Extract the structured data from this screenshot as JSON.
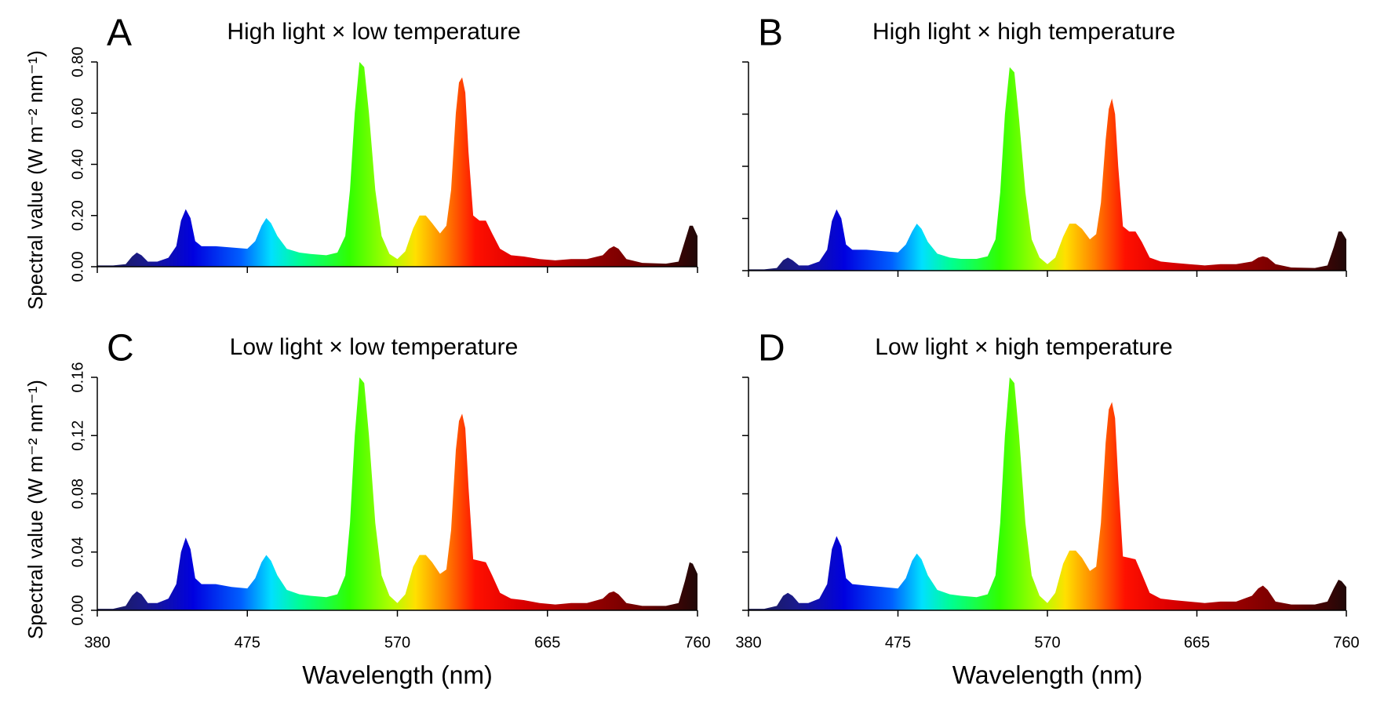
{
  "chart_data": [
    {
      "type": "area",
      "panel": "A",
      "title": "High light × low temperature",
      "ylabel": "Spectral value (W m⁻² nm⁻¹)",
      "ylim": [
        0,
        0.8
      ],
      "yticks": [
        {
          "value": 0,
          "label": "0.00"
        },
        {
          "value": 0.2,
          "label": "0.20"
        },
        {
          "value": 0.4,
          "label": "0.40"
        },
        {
          "value": 0.6,
          "label": "0.60"
        },
        {
          "value": 0.8,
          "label": "0.80"
        }
      ],
      "x": [
        380,
        390,
        398,
        402,
        405,
        408,
        412,
        418,
        425,
        430,
        433,
        436,
        439,
        442,
        446,
        455,
        465,
        475,
        480,
        484,
        487,
        490,
        494,
        500,
        508,
        515,
        525,
        532,
        537,
        540,
        543,
        546,
        549,
        552,
        556,
        560,
        565,
        570,
        575,
        580,
        584,
        588,
        592,
        597,
        601,
        604,
        607,
        609,
        611,
        613,
        615,
        618,
        622,
        626,
        630,
        635,
        642,
        650,
        660,
        670,
        680,
        690,
        700,
        704,
        707,
        710,
        715,
        725,
        740,
        748,
        752,
        755,
        757,
        760
      ],
      "values": [
        0.005,
        0.005,
        0.01,
        0.04,
        0.055,
        0.045,
        0.02,
        0.02,
        0.035,
        0.08,
        0.18,
        0.225,
        0.19,
        0.1,
        0.08,
        0.08,
        0.075,
        0.07,
        0.1,
        0.16,
        0.19,
        0.17,
        0.12,
        0.07,
        0.055,
        0.05,
        0.045,
        0.055,
        0.12,
        0.3,
        0.6,
        0.8,
        0.78,
        0.6,
        0.3,
        0.12,
        0.05,
        0.03,
        0.06,
        0.15,
        0.2,
        0.2,
        0.17,
        0.13,
        0.16,
        0.3,
        0.6,
        0.72,
        0.74,
        0.68,
        0.45,
        0.2,
        0.18,
        0.18,
        0.13,
        0.07,
        0.045,
        0.04,
        0.03,
        0.025,
        0.03,
        0.03,
        0.045,
        0.07,
        0.08,
        0.07,
        0.03,
        0.015,
        0.012,
        0.02,
        0.1,
        0.16,
        0.16,
        0.12
      ]
    },
    {
      "type": "area",
      "panel": "B",
      "title": "High light × high temperature",
      "x": [
        380,
        390,
        398,
        402,
        405,
        408,
        412,
        418,
        425,
        430,
        433,
        436,
        439,
        442,
        446,
        455,
        465,
        475,
        480,
        484,
        487,
        490,
        494,
        500,
        508,
        515,
        525,
        532,
        537,
        540,
        543,
        546,
        549,
        552,
        556,
        560,
        565,
        570,
        575,
        580,
        584,
        588,
        592,
        597,
        601,
        604,
        607,
        609,
        611,
        613,
        615,
        618,
        622,
        626,
        630,
        635,
        642,
        650,
        660,
        670,
        680,
        690,
        700,
        704,
        707,
        710,
        715,
        725,
        740,
        748,
        752,
        755,
        757,
        760
      ],
      "values": [
        0.005,
        0.005,
        0.01,
        0.04,
        0.05,
        0.04,
        0.02,
        0.02,
        0.035,
        0.08,
        0.19,
        0.235,
        0.2,
        0.1,
        0.08,
        0.08,
        0.075,
        0.07,
        0.1,
        0.15,
        0.18,
        0.16,
        0.11,
        0.065,
        0.05,
        0.045,
        0.045,
        0.055,
        0.12,
        0.3,
        0.6,
        0.78,
        0.76,
        0.58,
        0.3,
        0.12,
        0.05,
        0.025,
        0.05,
        0.13,
        0.18,
        0.18,
        0.16,
        0.12,
        0.14,
        0.26,
        0.5,
        0.62,
        0.66,
        0.6,
        0.4,
        0.17,
        0.15,
        0.15,
        0.11,
        0.05,
        0.035,
        0.03,
        0.025,
        0.02,
        0.025,
        0.025,
        0.035,
        0.05,
        0.055,
        0.05,
        0.025,
        0.012,
        0.01,
        0.02,
        0.09,
        0.15,
        0.15,
        0.12
      ]
    },
    {
      "type": "area",
      "panel": "C",
      "title": "Low light × low temperature",
      "ylabel": "Spectral value (W m⁻² nm⁻¹)",
      "xlabel": "Wavelength (nm)",
      "xlim": [
        380,
        760
      ],
      "xticks": [
        380,
        475,
        570,
        665,
        760
      ],
      "ylim": [
        0,
        0.16
      ],
      "yticks": [
        {
          "value": 0,
          "label": "0.00"
        },
        {
          "value": 0.04,
          "label": "0.04"
        },
        {
          "value": 0.08,
          "label": "0.08"
        },
        {
          "value": 0.12,
          "label": "0,12"
        },
        {
          "value": 0.16,
          "label": "0.16"
        }
      ],
      "x": [
        380,
        390,
        398,
        402,
        405,
        408,
        412,
        418,
        425,
        430,
        433,
        436,
        439,
        442,
        446,
        455,
        465,
        475,
        480,
        484,
        487,
        490,
        494,
        500,
        508,
        515,
        525,
        532,
        537,
        540,
        543,
        546,
        549,
        552,
        556,
        560,
        565,
        570,
        575,
        580,
        584,
        588,
        592,
        597,
        601,
        604,
        607,
        609,
        611,
        613,
        615,
        618,
        622,
        626,
        630,
        635,
        642,
        650,
        660,
        670,
        680,
        690,
        700,
        704,
        707,
        710,
        715,
        725,
        740,
        748,
        752,
        755,
        757,
        760
      ],
      "values": [
        0.001,
        0.001,
        0.003,
        0.01,
        0.013,
        0.011,
        0.005,
        0.005,
        0.008,
        0.018,
        0.04,
        0.05,
        0.042,
        0.022,
        0.018,
        0.018,
        0.016,
        0.015,
        0.022,
        0.033,
        0.038,
        0.034,
        0.024,
        0.014,
        0.011,
        0.01,
        0.009,
        0.011,
        0.024,
        0.06,
        0.12,
        0.16,
        0.156,
        0.12,
        0.06,
        0.024,
        0.01,
        0.005,
        0.011,
        0.03,
        0.038,
        0.038,
        0.033,
        0.025,
        0.028,
        0.055,
        0.11,
        0.13,
        0.135,
        0.125,
        0.085,
        0.035,
        0.034,
        0.033,
        0.024,
        0.012,
        0.008,
        0.007,
        0.005,
        0.004,
        0.005,
        0.005,
        0.008,
        0.012,
        0.013,
        0.011,
        0.005,
        0.003,
        0.003,
        0.005,
        0.02,
        0.033,
        0.032,
        0.025
      ]
    },
    {
      "type": "area",
      "panel": "D",
      "title": "Low light × high temperature",
      "xlabel": "Wavelength (nm)",
      "xlim": [
        380,
        760
      ],
      "xticks": [
        380,
        475,
        570,
        665,
        760
      ],
      "x": [
        380,
        390,
        398,
        402,
        405,
        408,
        412,
        418,
        425,
        430,
        433,
        436,
        439,
        442,
        446,
        455,
        465,
        475,
        480,
        484,
        487,
        490,
        494,
        500,
        508,
        515,
        525,
        532,
        537,
        540,
        543,
        546,
        549,
        552,
        556,
        560,
        565,
        570,
        575,
        580,
        584,
        588,
        592,
        597,
        601,
        604,
        607,
        609,
        611,
        613,
        615,
        618,
        622,
        626,
        630,
        635,
        642,
        650,
        660,
        670,
        680,
        690,
        700,
        704,
        707,
        710,
        715,
        725,
        740,
        748,
        752,
        755,
        757,
        760
      ],
      "values": [
        0.001,
        0.001,
        0.003,
        0.01,
        0.012,
        0.01,
        0.005,
        0.005,
        0.008,
        0.018,
        0.042,
        0.051,
        0.044,
        0.022,
        0.018,
        0.017,
        0.016,
        0.015,
        0.022,
        0.034,
        0.039,
        0.035,
        0.024,
        0.014,
        0.011,
        0.01,
        0.009,
        0.011,
        0.024,
        0.06,
        0.12,
        0.16,
        0.156,
        0.12,
        0.06,
        0.024,
        0.01,
        0.005,
        0.012,
        0.032,
        0.041,
        0.041,
        0.036,
        0.027,
        0.03,
        0.06,
        0.115,
        0.138,
        0.143,
        0.132,
        0.09,
        0.037,
        0.036,
        0.035,
        0.025,
        0.012,
        0.008,
        0.007,
        0.006,
        0.005,
        0.006,
        0.006,
        0.01,
        0.015,
        0.017,
        0.014,
        0.006,
        0.004,
        0.004,
        0.006,
        0.015,
        0.021,
        0.02,
        0.016
      ]
    }
  ]
}
